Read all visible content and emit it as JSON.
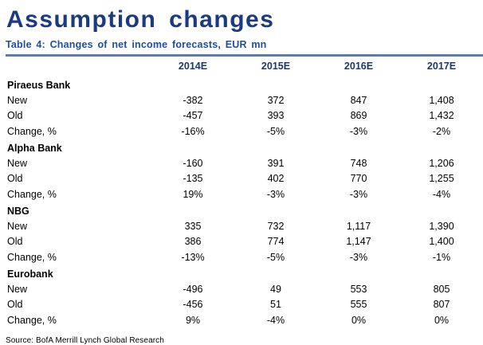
{
  "page": {
    "title": "Assumption changes",
    "table_title": "Table 4: Changes of net income forecasts,  EUR mn",
    "source": "Source: BofA Merrill Lynch Global Research"
  },
  "colors": {
    "title": "#1a3a82",
    "subtitle": "#1e4fa0",
    "header": "#1f3864",
    "rule": "#5b7fa6",
    "body": "#000000",
    "bg": "#ffffff"
  },
  "chart_data": {
    "type": "table",
    "title": "Table 4: Changes of net income forecasts, EUR mn",
    "columns": [
      "2014E",
      "2015E",
      "2016E",
      "2017E"
    ],
    "sections": [
      {
        "name": "Piraeus Bank",
        "rows": [
          {
            "label": "New",
            "values": [
              "-382",
              "372",
              "847",
              "1,408"
            ]
          },
          {
            "label": "Old",
            "values": [
              "-457",
              "393",
              "869",
              "1,432"
            ]
          },
          {
            "label": "Change, %",
            "values": [
              "-16%",
              "-5%",
              "-3%",
              "-2%"
            ]
          }
        ]
      },
      {
        "name": "Alpha Bank",
        "rows": [
          {
            "label": "New",
            "values": [
              "-160",
              "391",
              "748",
              "1,206"
            ]
          },
          {
            "label": "Old",
            "values": [
              "-135",
              "402",
              "770",
              "1,255"
            ]
          },
          {
            "label": "Change, %",
            "values": [
              "19%",
              "-3%",
              "-3%",
              "-4%"
            ]
          }
        ]
      },
      {
        "name": "NBG",
        "rows": [
          {
            "label": "New",
            "values": [
              "335",
              "732",
              "1,117",
              "1,390"
            ]
          },
          {
            "label": "Old",
            "values": [
              "386",
              "774",
              "1,147",
              "1,400"
            ]
          },
          {
            "label": "Change, %",
            "values": [
              "-13%",
              "-5%",
              "-3%",
              "-1%"
            ]
          }
        ]
      },
      {
        "name": "Eurobank",
        "rows": [
          {
            "label": "New",
            "values": [
              "-496",
              "49",
              "553",
              "805"
            ]
          },
          {
            "label": "Old",
            "values": [
              "-456",
              "51",
              "555",
              "807"
            ]
          },
          {
            "label": "Change, %",
            "values": [
              "9%",
              "-4%",
              "0%",
              "0%"
            ]
          }
        ]
      }
    ]
  }
}
